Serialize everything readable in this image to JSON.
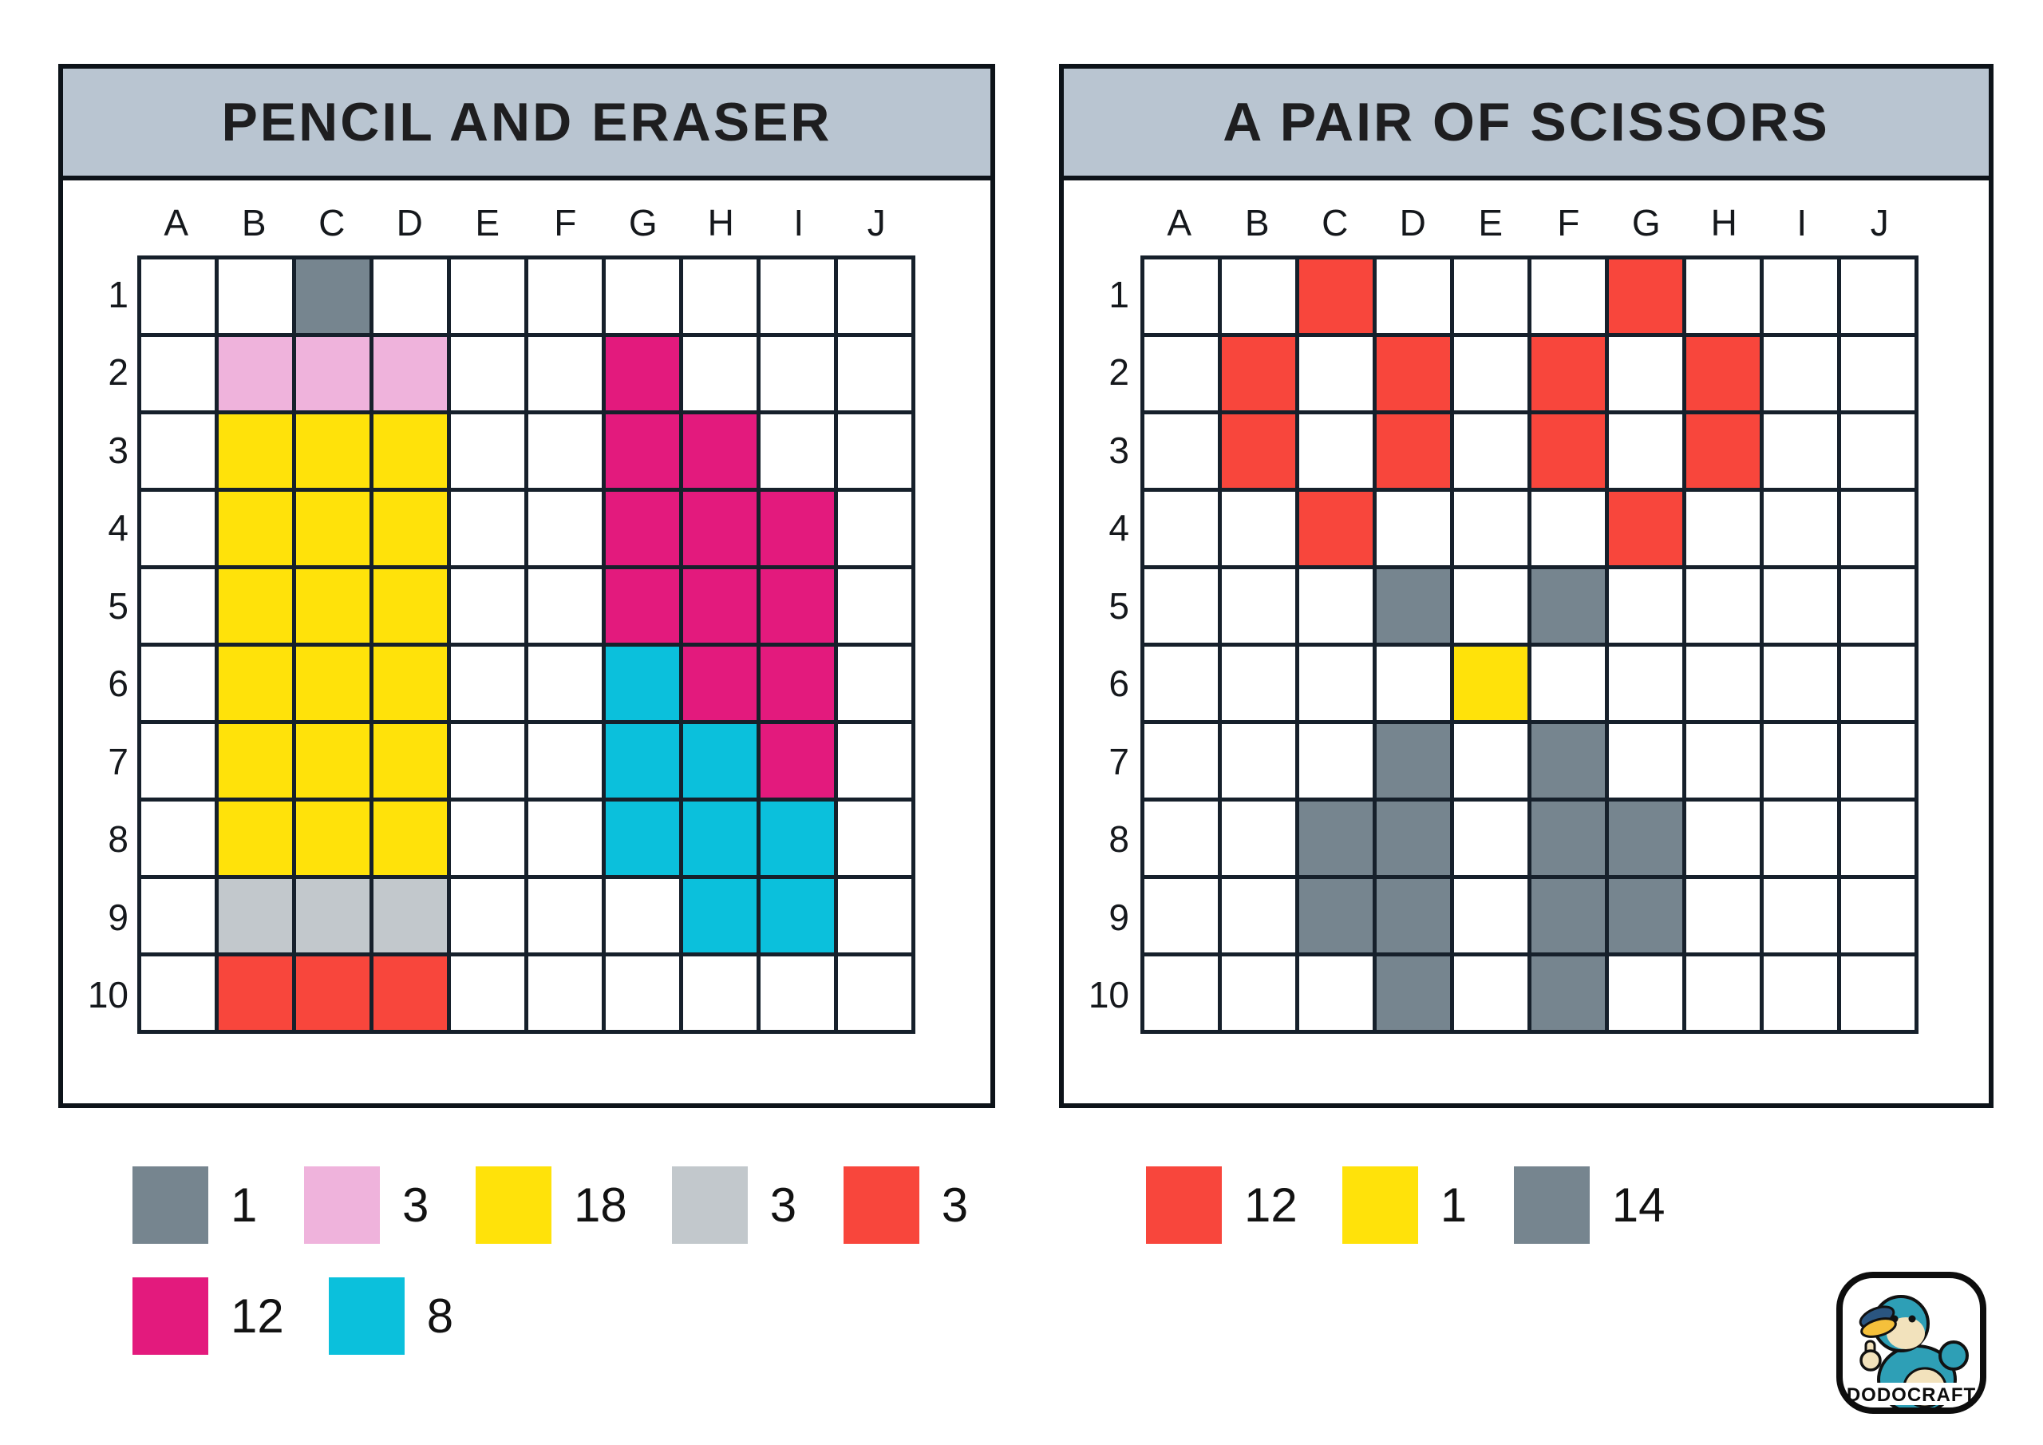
{
  "panels": [
    {
      "title": "PENCIL AND ERASER",
      "column_labels": [
        "A",
        "B",
        "C",
        "D",
        "E",
        "F",
        "G",
        "H",
        "I",
        "J"
      ],
      "row_labels": [
        "1",
        "2",
        "3",
        "4",
        "5",
        "6",
        "7",
        "8",
        "9",
        "10"
      ],
      "filled_cells": [
        {
          "col": "C",
          "row": "1",
          "color": "dark_gray"
        },
        {
          "col": "B",
          "row": "2",
          "color": "pink"
        },
        {
          "col": "C",
          "row": "2",
          "color": "pink"
        },
        {
          "col": "D",
          "row": "2",
          "color": "pink"
        },
        {
          "col": "G",
          "row": "2",
          "color": "magenta"
        },
        {
          "col": "B",
          "row": "3",
          "color": "yellow"
        },
        {
          "col": "C",
          "row": "3",
          "color": "yellow"
        },
        {
          "col": "D",
          "row": "3",
          "color": "yellow"
        },
        {
          "col": "G",
          "row": "3",
          "color": "magenta"
        },
        {
          "col": "H",
          "row": "3",
          "color": "magenta"
        },
        {
          "col": "B",
          "row": "4",
          "color": "yellow"
        },
        {
          "col": "C",
          "row": "4",
          "color": "yellow"
        },
        {
          "col": "D",
          "row": "4",
          "color": "yellow"
        },
        {
          "col": "G",
          "row": "4",
          "color": "magenta"
        },
        {
          "col": "H",
          "row": "4",
          "color": "magenta"
        },
        {
          "col": "I",
          "row": "4",
          "color": "magenta"
        },
        {
          "col": "B",
          "row": "5",
          "color": "yellow"
        },
        {
          "col": "C",
          "row": "5",
          "color": "yellow"
        },
        {
          "col": "D",
          "row": "5",
          "color": "yellow"
        },
        {
          "col": "G",
          "row": "5",
          "color": "magenta"
        },
        {
          "col": "H",
          "row": "5",
          "color": "magenta"
        },
        {
          "col": "I",
          "row": "5",
          "color": "magenta"
        },
        {
          "col": "B",
          "row": "6",
          "color": "yellow"
        },
        {
          "col": "C",
          "row": "6",
          "color": "yellow"
        },
        {
          "col": "D",
          "row": "6",
          "color": "yellow"
        },
        {
          "col": "G",
          "row": "6",
          "color": "cyan"
        },
        {
          "col": "H",
          "row": "6",
          "color": "magenta"
        },
        {
          "col": "I",
          "row": "6",
          "color": "magenta"
        },
        {
          "col": "B",
          "row": "7",
          "color": "yellow"
        },
        {
          "col": "C",
          "row": "7",
          "color": "yellow"
        },
        {
          "col": "D",
          "row": "7",
          "color": "yellow"
        },
        {
          "col": "G",
          "row": "7",
          "color": "cyan"
        },
        {
          "col": "H",
          "row": "7",
          "color": "cyan"
        },
        {
          "col": "I",
          "row": "7",
          "color": "magenta"
        },
        {
          "col": "B",
          "row": "8",
          "color": "yellow"
        },
        {
          "col": "C",
          "row": "8",
          "color": "yellow"
        },
        {
          "col": "D",
          "row": "8",
          "color": "yellow"
        },
        {
          "col": "G",
          "row": "8",
          "color": "cyan"
        },
        {
          "col": "H",
          "row": "8",
          "color": "cyan"
        },
        {
          "col": "I",
          "row": "8",
          "color": "cyan"
        },
        {
          "col": "B",
          "row": "9",
          "color": "light_gray"
        },
        {
          "col": "C",
          "row": "9",
          "color": "light_gray"
        },
        {
          "col": "D",
          "row": "9",
          "color": "light_gray"
        },
        {
          "col": "H",
          "row": "9",
          "color": "cyan"
        },
        {
          "col": "I",
          "row": "9",
          "color": "cyan"
        },
        {
          "col": "B",
          "row": "10",
          "color": "red"
        },
        {
          "col": "C",
          "row": "10",
          "color": "red"
        },
        {
          "col": "D",
          "row": "10",
          "color": "red"
        }
      ]
    },
    {
      "title": "A PAIR OF SCISSORS",
      "column_labels": [
        "A",
        "B",
        "C",
        "D",
        "E",
        "F",
        "G",
        "H",
        "I",
        "J"
      ],
      "row_labels": [
        "1",
        "2",
        "3",
        "4",
        "5",
        "6",
        "7",
        "8",
        "9",
        "10"
      ],
      "filled_cells": [
        {
          "col": "C",
          "row": "1",
          "color": "red"
        },
        {
          "col": "G",
          "row": "1",
          "color": "red"
        },
        {
          "col": "B",
          "row": "2",
          "color": "red"
        },
        {
          "col": "D",
          "row": "2",
          "color": "red"
        },
        {
          "col": "F",
          "row": "2",
          "color": "red"
        },
        {
          "col": "H",
          "row": "2",
          "color": "red"
        },
        {
          "col": "B",
          "row": "3",
          "color": "red"
        },
        {
          "col": "D",
          "row": "3",
          "color": "red"
        },
        {
          "col": "F",
          "row": "3",
          "color": "red"
        },
        {
          "col": "H",
          "row": "3",
          "color": "red"
        },
        {
          "col": "C",
          "row": "4",
          "color": "red"
        },
        {
          "col": "G",
          "row": "4",
          "color": "red"
        },
        {
          "col": "D",
          "row": "5",
          "color": "dark_gray"
        },
        {
          "col": "F",
          "row": "5",
          "color": "dark_gray"
        },
        {
          "col": "E",
          "row": "6",
          "color": "yellow"
        },
        {
          "col": "D",
          "row": "7",
          "color": "dark_gray"
        },
        {
          "col": "F",
          "row": "7",
          "color": "dark_gray"
        },
        {
          "col": "C",
          "row": "8",
          "color": "dark_gray"
        },
        {
          "col": "D",
          "row": "8",
          "color": "dark_gray"
        },
        {
          "col": "F",
          "row": "8",
          "color": "dark_gray"
        },
        {
          "col": "G",
          "row": "8",
          "color": "dark_gray"
        },
        {
          "col": "C",
          "row": "9",
          "color": "dark_gray"
        },
        {
          "col": "D",
          "row": "9",
          "color": "dark_gray"
        },
        {
          "col": "F",
          "row": "9",
          "color": "dark_gray"
        },
        {
          "col": "G",
          "row": "9",
          "color": "dark_gray"
        },
        {
          "col": "D",
          "row": "10",
          "color": "dark_gray"
        },
        {
          "col": "F",
          "row": "10",
          "color": "dark_gray"
        }
      ]
    }
  ],
  "legends": [
    {
      "rows": [
        [
          {
            "color": "dark_gray",
            "count": "1"
          },
          {
            "color": "pink",
            "count": "3"
          },
          {
            "color": "yellow",
            "count": "18"
          },
          {
            "color": "light_gray",
            "count": "3"
          },
          {
            "color": "red",
            "count": "3"
          }
        ],
        [
          {
            "color": "magenta",
            "count": "12"
          },
          {
            "color": "cyan",
            "count": "8"
          }
        ]
      ]
    },
    {
      "rows": [
        [
          {
            "color": "red",
            "count": "12"
          },
          {
            "color": "yellow",
            "count": "1"
          },
          {
            "color": "dark_gray",
            "count": "14"
          }
        ]
      ]
    }
  ],
  "palette": {
    "dark_gray": "#76858f",
    "light_gray": "#c2c8cc",
    "pink": "#efb3dc",
    "yellow": "#ffe20a",
    "red": "#f8463c",
    "magenta": "#e31a7d",
    "cyan": "#0bc0dc",
    "header_bg": "#b9c5d1",
    "grid_line": "#16202b",
    "cell_bg": "#ffffff"
  },
  "logo": {
    "brand": "DODOCRAFT"
  }
}
